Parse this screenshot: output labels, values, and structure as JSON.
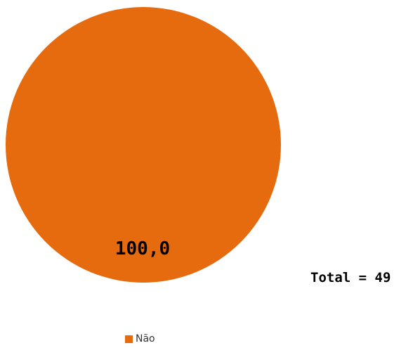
{
  "chart_data": {
    "type": "pie",
    "slices": [
      {
        "label": "Não",
        "value": 100.0,
        "display_value": "100,0",
        "color": "#E56B0E"
      }
    ],
    "total_text": "Total = 49",
    "legend_position": "bottom-center"
  }
}
